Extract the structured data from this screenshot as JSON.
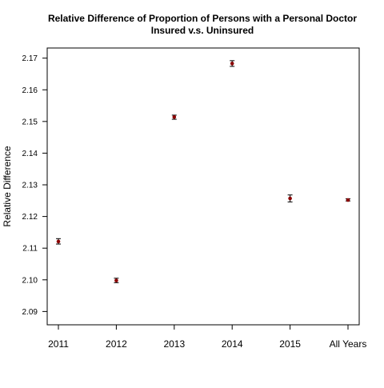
{
  "chart_data": {
    "type": "scatter",
    "title": "Relative Difference of Proportion of Persons with a Personal Doctor",
    "subtitle": "Insured v.s. Uninsured",
    "xlabel": "",
    "ylabel": "Relative Difference",
    "categories": [
      "2011",
      "2012",
      "2013",
      "2014",
      "2015",
      "All Years"
    ],
    "values": [
      2.1121,
      2.0998,
      2.1514,
      2.1683,
      2.1257,
      2.1252
    ],
    "error_bars": [
      {
        "low": 2.1113,
        "high": 2.113
      },
      {
        "low": 2.0991,
        "high": 2.1005
      },
      {
        "low": 2.1507,
        "high": 2.152
      },
      {
        "low": 2.1674,
        "high": 2.1692
      },
      {
        "low": 2.1246,
        "high": 2.1268
      },
      {
        "low": 2.1249,
        "high": 2.1256
      }
    ],
    "yticks": [
      2.09,
      2.1,
      2.11,
      2.12,
      2.13,
      2.14,
      2.15,
      2.16,
      2.17
    ],
    "ylim": [
      2.0858,
      2.1732
    ],
    "grid": false,
    "colors": {
      "point": "#8b0000",
      "errorbar": "#000000",
      "axis": "#000000"
    }
  }
}
